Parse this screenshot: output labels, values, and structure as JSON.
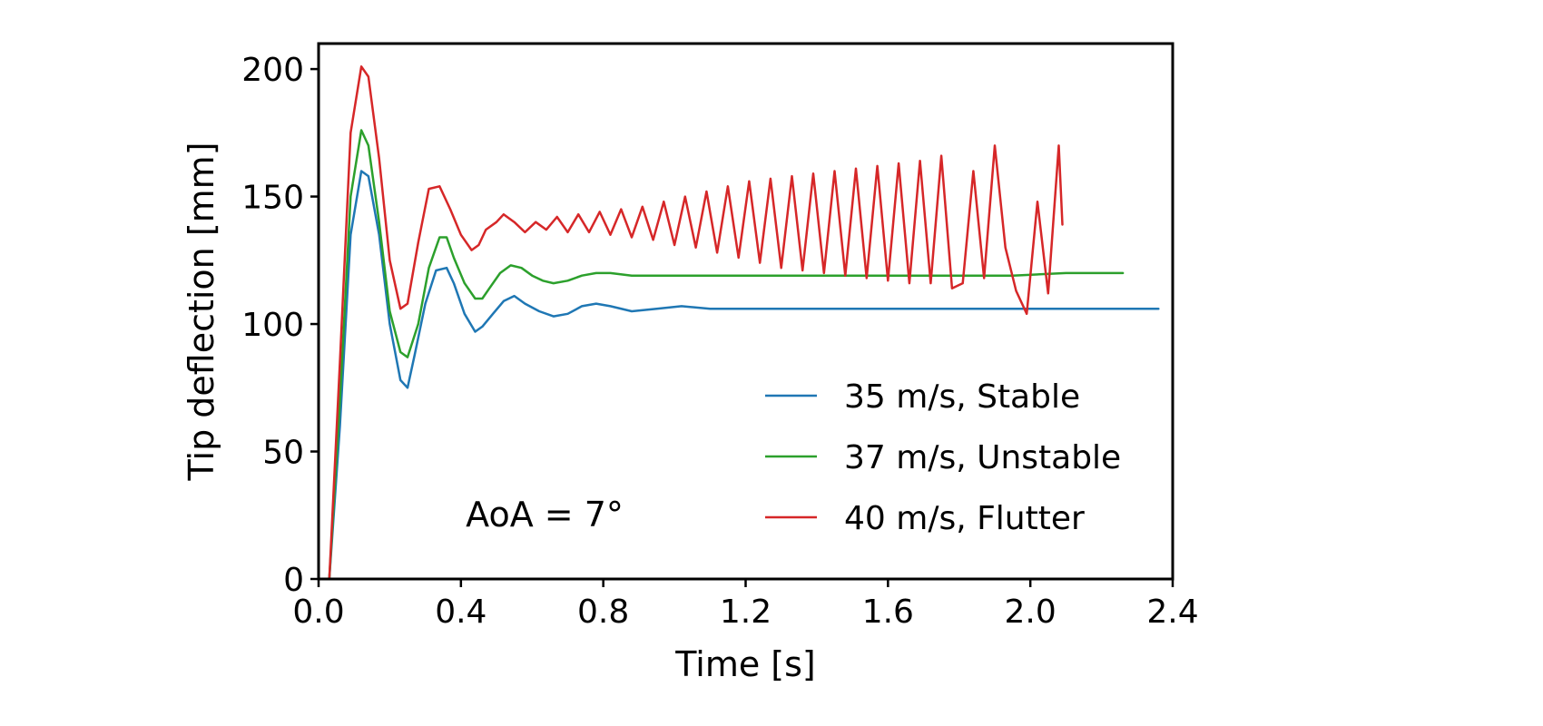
{
  "chart_data": {
    "type": "line",
    "xlabel": "Time [s]",
    "ylabel": "Tip deflection [mm]",
    "xlim": [
      0.0,
      2.4
    ],
    "ylim": [
      0,
      210
    ],
    "xticks": [
      0.0,
      0.4,
      0.8,
      1.2,
      1.6,
      2.0,
      2.4
    ],
    "xtick_labels": [
      "0.0",
      "0.4",
      "0.8",
      "1.2",
      "1.6",
      "2.0",
      "2.4"
    ],
    "yticks": [
      0,
      50,
      100,
      150,
      200
    ],
    "ytick_labels": [
      "0",
      "50",
      "100",
      "150",
      "200"
    ],
    "grid": false,
    "legend_position": "lower-right",
    "annotation": "AoA = 7°",
    "series": [
      {
        "name": "35 m/s, Stable",
        "color": "#1f77b4",
        "x": [
          0.0,
          0.03,
          0.06,
          0.09,
          0.12,
          0.14,
          0.17,
          0.2,
          0.23,
          0.25,
          0.27,
          0.3,
          0.33,
          0.36,
          0.38,
          0.41,
          0.44,
          0.46,
          0.49,
          0.52,
          0.55,
          0.58,
          0.62,
          0.66,
          0.7,
          0.74,
          0.78,
          0.82,
          0.88,
          0.95,
          1.02,
          1.1,
          1.2,
          1.3,
          1.4,
          1.5,
          1.6,
          1.7,
          1.8,
          1.9,
          2.0,
          2.1,
          2.2,
          2.3,
          2.36
        ],
        "y": [
          0,
          0,
          60,
          135,
          160,
          158,
          135,
          100,
          78,
          75,
          88,
          108,
          121,
          122,
          116,
          104,
          97,
          99,
          104,
          109,
          111,
          108,
          105,
          103,
          104,
          107,
          108,
          107,
          105,
          106,
          107,
          106,
          106,
          106,
          106,
          106,
          106,
          106,
          106,
          106,
          106,
          106,
          106,
          106,
          106
        ]
      },
      {
        "name": "37 m/s, Unstable",
        "color": "#2ca02c",
        "x": [
          0.0,
          0.03,
          0.06,
          0.09,
          0.12,
          0.14,
          0.17,
          0.2,
          0.23,
          0.25,
          0.28,
          0.31,
          0.34,
          0.36,
          0.38,
          0.41,
          0.44,
          0.46,
          0.48,
          0.51,
          0.54,
          0.57,
          0.6,
          0.63,
          0.66,
          0.7,
          0.74,
          0.78,
          0.82,
          0.88,
          0.95,
          1.05,
          1.2,
          1.35,
          1.5,
          1.65,
          1.8,
          1.95,
          2.1,
          2.2,
          2.26
        ],
        "y": [
          0,
          0,
          70,
          150,
          176,
          170,
          140,
          105,
          89,
          87,
          100,
          122,
          134,
          134,
          126,
          116,
          110,
          110,
          114,
          120,
          123,
          122,
          119,
          117,
          116,
          117,
          119,
          120,
          120,
          119,
          119,
          119,
          119,
          119,
          119,
          119,
          119,
          119,
          120,
          120,
          120
        ]
      },
      {
        "name": "40 m/s, Flutter",
        "color": "#d62728",
        "x": [
          0.0,
          0.03,
          0.06,
          0.09,
          0.12,
          0.14,
          0.17,
          0.2,
          0.23,
          0.25,
          0.28,
          0.31,
          0.34,
          0.37,
          0.4,
          0.43,
          0.45,
          0.47,
          0.5,
          0.52,
          0.55,
          0.58,
          0.61,
          0.64,
          0.67,
          0.7,
          0.73,
          0.76,
          0.79,
          0.82,
          0.85,
          0.88,
          0.91,
          0.94,
          0.97,
          1.0,
          1.03,
          1.06,
          1.09,
          1.12,
          1.15,
          1.18,
          1.21,
          1.24,
          1.27,
          1.3,
          1.33,
          1.36,
          1.39,
          1.42,
          1.45,
          1.48,
          1.51,
          1.54,
          1.57,
          1.6,
          1.63,
          1.66,
          1.69,
          1.72,
          1.75,
          1.78,
          1.81,
          1.84,
          1.87,
          1.9,
          1.93,
          1.96,
          1.99,
          2.02,
          2.05,
          2.08,
          2.09
        ],
        "y": [
          0,
          0,
          85,
          175,
          201,
          197,
          165,
          125,
          106,
          108,
          132,
          153,
          154,
          145,
          135,
          129,
          131,
          137,
          140,
          143,
          140,
          136,
          140,
          137,
          142,
          136,
          143,
          136,
          144,
          135,
          145,
          134,
          146,
          133,
          148,
          131,
          150,
          130,
          152,
          128,
          154,
          126,
          156,
          124,
          157,
          122,
          158,
          121,
          159,
          120,
          160,
          119,
          161,
          118,
          162,
          117,
          163,
          116,
          164,
          116,
          166,
          114,
          116,
          160,
          118,
          170,
          130,
          113,
          104,
          148,
          112,
          170,
          139
        ]
      }
    ]
  }
}
